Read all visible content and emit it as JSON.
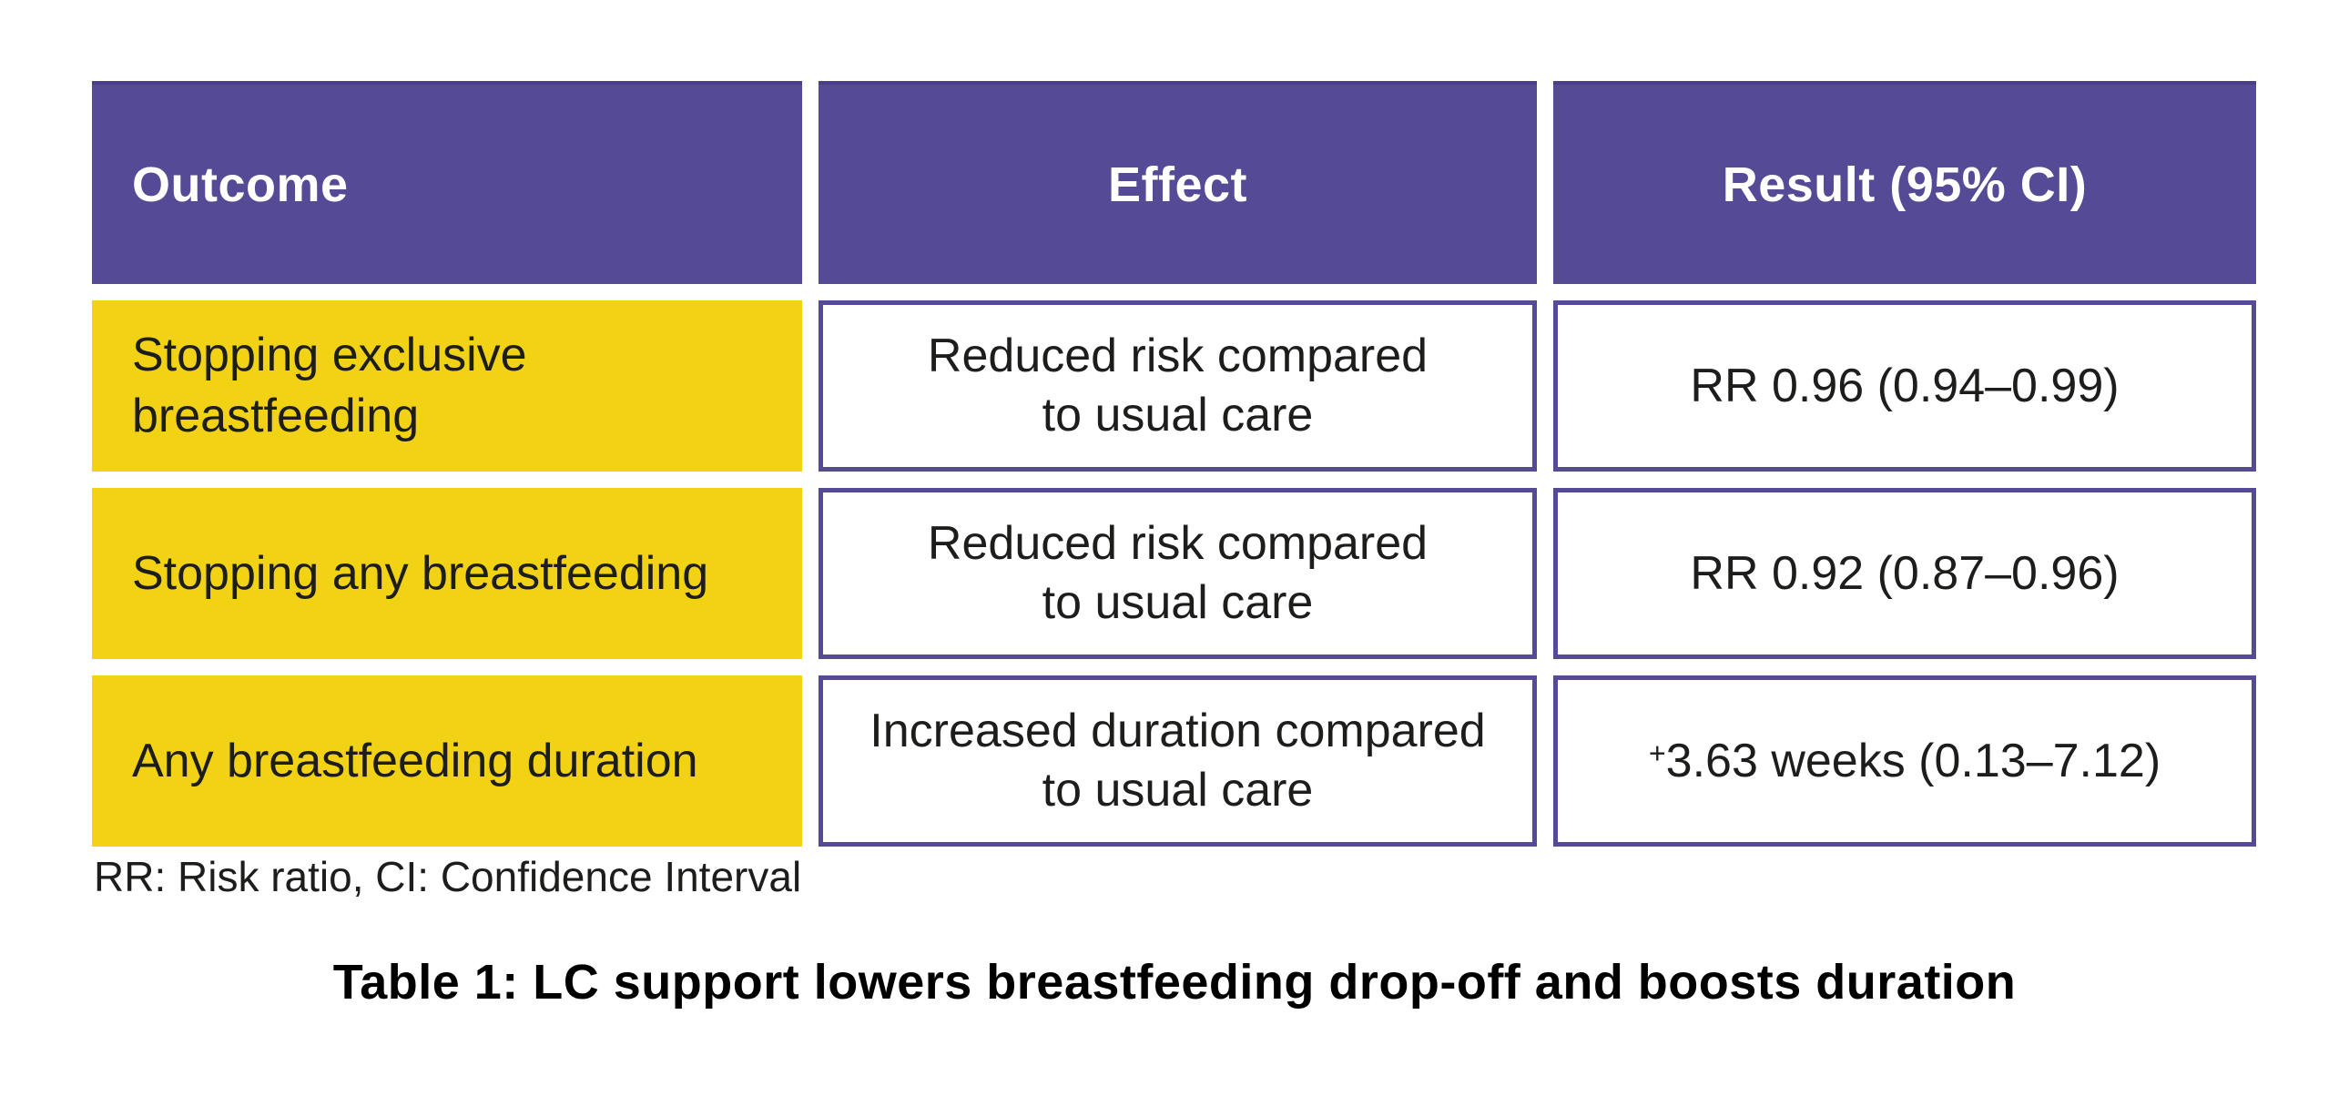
{
  "colors": {
    "header_purple": "#554A96",
    "header_purple_top_edge": "#4A3F87",
    "border_purple": "#554A96",
    "outcome_yellow": "#F2D214",
    "text_dark": "#1D1D1B",
    "header_text": "#FFFFFF",
    "background": "#FFFFFF"
  },
  "table": {
    "headers": [
      "Outcome",
      "Effect",
      "Result (95% CI)"
    ],
    "rows": [
      {
        "outcome": "Stopping exclusive breastfeeding",
        "effect_line1": "Reduced risk compared",
        "effect_line2": "to usual care",
        "result_prefix": "",
        "result": "RR 0.96 (0.94–0.99)"
      },
      {
        "outcome": "Stopping any breastfeeding",
        "effect_line1": "Reduced risk compared",
        "effect_line2": "to usual care",
        "result_prefix": "",
        "result": "RR 0.92 (0.87–0.96)"
      },
      {
        "outcome": "Any breastfeeding duration",
        "effect_line1": "Increased duration compared",
        "effect_line2": "to usual care",
        "result_prefix": "+",
        "result": "3.63 weeks (0.13–7.12)"
      }
    ],
    "footnote": "RR: Risk ratio, CI: Confidence Interval",
    "caption": "Table 1: LC support lowers breastfeeding drop-off and boosts duration"
  },
  "chart_data": {
    "type": "table",
    "title": "Table 1: LC support lowers breastfeeding drop-off and boosts duration",
    "columns": [
      "Outcome",
      "Effect",
      "Result (95% CI)"
    ],
    "rows": [
      [
        "Stopping exclusive breastfeeding",
        "Reduced risk compared to usual care",
        "RR 0.96 (0.94–0.99)"
      ],
      [
        "Stopping any breastfeeding",
        "Reduced risk compared to usual care",
        "RR 0.92 (0.87–0.96)"
      ],
      [
        "Any breastfeeding duration",
        "Increased duration compared to usual care",
        "+3.63 weeks (0.13–7.12)"
      ]
    ],
    "footnote": "RR: Risk ratio, CI: Confidence Interval",
    "legend_position": "none",
    "grid": false
  }
}
